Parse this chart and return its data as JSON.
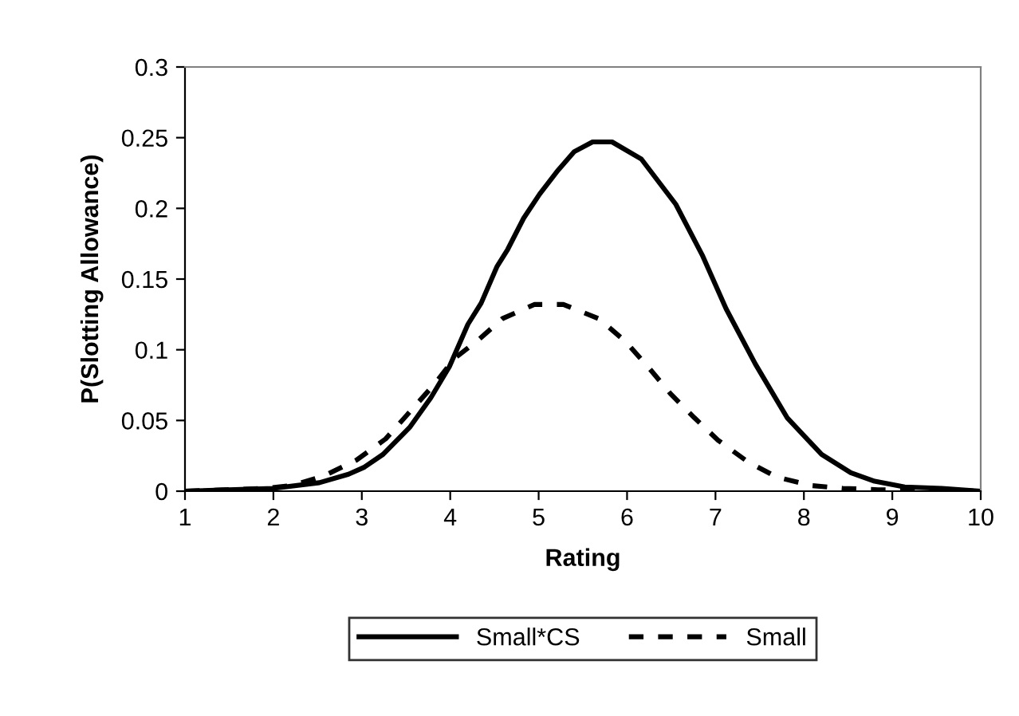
{
  "chart_data": {
    "type": "line",
    "xlabel": "Rating",
    "ylabel": "P(Slotting Allowance)",
    "xlim": [
      1,
      10
    ],
    "ylim": [
      0,
      0.3
    ],
    "xticks": [
      1,
      2,
      3,
      4,
      5,
      6,
      7,
      8,
      9,
      10
    ],
    "yticks": [
      0,
      0.05,
      0.1,
      0.15,
      0.2,
      0.25,
      0.3
    ],
    "grid": false,
    "legend": "bottom",
    "marker": "none",
    "series": [
      {
        "name": "Small*CS",
        "color": "#000000",
        "line_style": "solid",
        "x": [
          1,
          2.0,
          2.52,
          2.85,
          3.03,
          3.24,
          3.54,
          3.78,
          3.99,
          4.2,
          4.35,
          4.53,
          4.65,
          4.83,
          5.01,
          5.22,
          5.4,
          5.61,
          5.83,
          6.16,
          6.55,
          6.85,
          7.12,
          7.45,
          7.81,
          8.2,
          8.53,
          8.8,
          9.14,
          9.56,
          10
        ],
        "values": [
          0,
          0.002,
          0.006,
          0.012,
          0.017,
          0.026,
          0.045,
          0.066,
          0.088,
          0.118,
          0.133,
          0.159,
          0.171,
          0.193,
          0.21,
          0.227,
          0.24,
          0.247,
          0.247,
          0.235,
          0.203,
          0.167,
          0.129,
          0.09,
          0.052,
          0.026,
          0.013,
          0.007,
          0.003,
          0.002,
          0
        ]
      },
      {
        "name": "Small",
        "color": "#000000",
        "line_style": "dashed",
        "x": [
          1,
          1.92,
          2.21,
          2.58,
          2.94,
          3.27,
          3.57,
          3.84,
          4.05,
          4.32,
          4.59,
          4.95,
          5.28,
          5.68,
          5.98,
          6.25,
          6.49,
          6.76,
          7.03,
          7.36,
          7.69,
          8.08,
          8.44,
          8.84,
          10
        ],
        "values": [
          0,
          0.002,
          0.004,
          0.011,
          0.022,
          0.037,
          0.058,
          0.077,
          0.094,
          0.107,
          0.122,
          0.132,
          0.132,
          0.122,
          0.106,
          0.087,
          0.069,
          0.052,
          0.036,
          0.021,
          0.01,
          0.004,
          0.002,
          0.001,
          0
        ]
      }
    ]
  }
}
